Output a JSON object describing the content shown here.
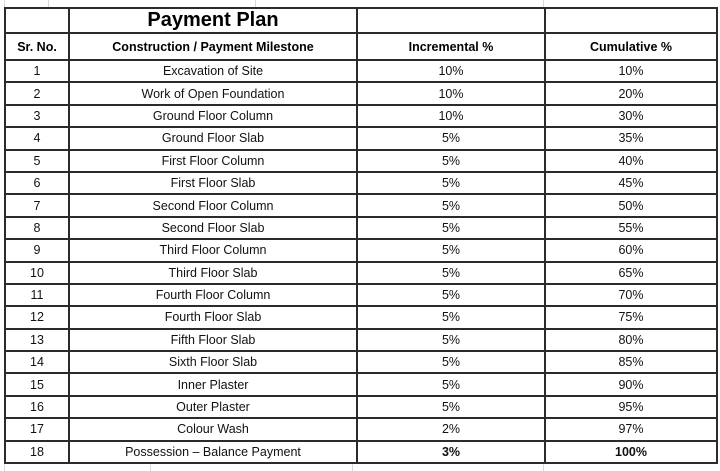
{
  "table": {
    "title": "Payment Plan",
    "columns": [
      "Sr. No.",
      "Construction / Payment Milestone",
      "Incremental %",
      "Cumulative %"
    ],
    "rows": [
      {
        "sr": "1",
        "milestone": "Excavation of Site",
        "incremental": "10%",
        "cumulative": "10%",
        "bold_values": false
      },
      {
        "sr": "2",
        "milestone": "Work of Open Foundation",
        "incremental": "10%",
        "cumulative": "20%",
        "bold_values": false
      },
      {
        "sr": "3",
        "milestone": "Ground Floor Column",
        "incremental": "10%",
        "cumulative": "30%",
        "bold_values": false
      },
      {
        "sr": "4",
        "milestone": "Ground Floor Slab",
        "incremental": "5%",
        "cumulative": "35%",
        "bold_values": false
      },
      {
        "sr": "5",
        "milestone": "First Floor Column",
        "incremental": "5%",
        "cumulative": "40%",
        "bold_values": false
      },
      {
        "sr": "6",
        "milestone": "First Floor Slab",
        "incremental": "5%",
        "cumulative": "45%",
        "bold_values": false
      },
      {
        "sr": "7",
        "milestone": "Second Floor Column",
        "incremental": "5%",
        "cumulative": "50%",
        "bold_values": false
      },
      {
        "sr": "8",
        "milestone": "Second Floor Slab",
        "incremental": "5%",
        "cumulative": "55%",
        "bold_values": false
      },
      {
        "sr": "9",
        "milestone": "Third Floor Column",
        "incremental": "5%",
        "cumulative": "60%",
        "bold_values": false
      },
      {
        "sr": "10",
        "milestone": "Third Floor Slab",
        "incremental": "5%",
        "cumulative": "65%",
        "bold_values": false
      },
      {
        "sr": "11",
        "milestone": "Fourth Floor Column",
        "incremental": "5%",
        "cumulative": "70%",
        "bold_values": false
      },
      {
        "sr": "12",
        "milestone": "Fourth Floor Slab",
        "incremental": "5%",
        "cumulative": "75%",
        "bold_values": false
      },
      {
        "sr": "13",
        "milestone": "Fifth Floor Slab",
        "incremental": "5%",
        "cumulative": "80%",
        "bold_values": false
      },
      {
        "sr": "14",
        "milestone": "Sixth Floor Slab",
        "incremental": "5%",
        "cumulative": "85%",
        "bold_values": false
      },
      {
        "sr": "15",
        "milestone": "Inner Plaster",
        "incremental": "5%",
        "cumulative": "90%",
        "bold_values": false
      },
      {
        "sr": "16",
        "milestone": "Outer Plaster",
        "incremental": "5%",
        "cumulative": "95%",
        "bold_values": false
      },
      {
        "sr": "17",
        "milestone": "Colour Wash",
        "incremental": "2%",
        "cumulative": "97%",
        "bold_values": false
      },
      {
        "sr": "18",
        "milestone": "Possession – Balance Payment",
        "incremental": "3%",
        "cumulative": "100%",
        "bold_values": true
      }
    ],
    "colors": {
      "border": "#2b2b2b",
      "text": "#111111",
      "background": "#ffffff"
    }
  }
}
